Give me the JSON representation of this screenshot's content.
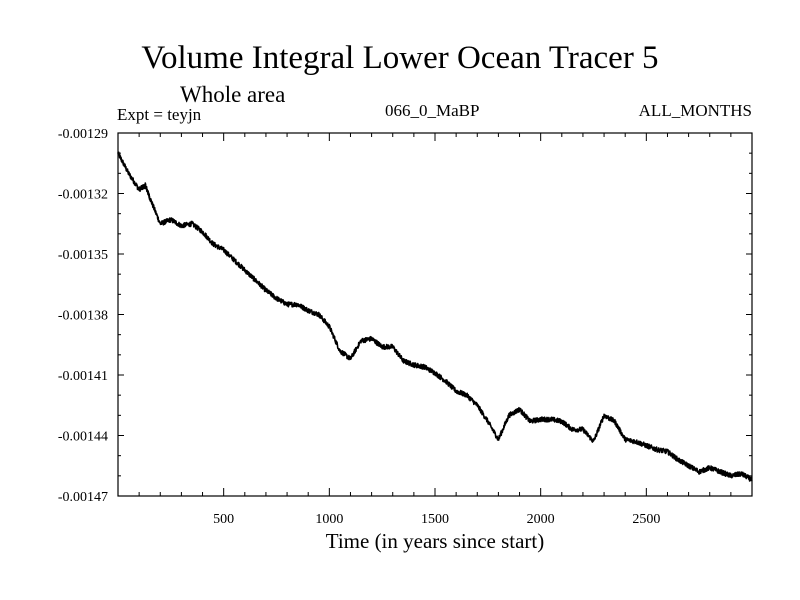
{
  "chart_data": {
    "type": "line",
    "title": "Volume Integral Lower Ocean Tracer 5",
    "subtitle": "Whole area",
    "annotations": {
      "left": "Expt = teyjn",
      "center": "066_0_MaBP",
      "right": "ALL_MONTHS"
    },
    "xlabel": "Time (in years since start)",
    "ylabel": "",
    "xlim": [
      0,
      3000
    ],
    "ylim": [
      -0.00147,
      -0.00129
    ],
    "xticks": [
      500,
      1000,
      1500,
      2000,
      2500
    ],
    "xtick_labels": [
      "500",
      "1000",
      "1500",
      "2000",
      "2500"
    ],
    "yticks": [
      -0.00129,
      -0.00132,
      -0.00135,
      -0.00138,
      -0.00141,
      -0.00144,
      -0.00147
    ],
    "ytick_labels": [
      "-0.00129",
      "-0.00132",
      "-0.00135",
      "-0.00138",
      "-0.00141",
      "-0.00144",
      "-0.00147"
    ],
    "series": [
      {
        "name": "Volume Integral Lower Ocean Tracer 5",
        "x": [
          0,
          50,
          100,
          130,
          150,
          200,
          250,
          300,
          350,
          400,
          450,
          500,
          550,
          600,
          650,
          700,
          750,
          800,
          850,
          900,
          950,
          1000,
          1050,
          1100,
          1150,
          1200,
          1250,
          1300,
          1350,
          1400,
          1450,
          1500,
          1550,
          1600,
          1650,
          1700,
          1750,
          1800,
          1850,
          1900,
          1950,
          2000,
          2050,
          2100,
          2150,
          2200,
          2250,
          2300,
          2350,
          2400,
          2450,
          2500,
          2550,
          2600,
          2650,
          2700,
          2750,
          2800,
          2850,
          2900,
          2950,
          3000
        ],
        "values": [
          -0.0013,
          -0.00131,
          -0.001318,
          -0.001316,
          -0.001322,
          -0.001335,
          -0.001333,
          -0.001336,
          -0.001335,
          -0.001339,
          -0.001345,
          -0.001348,
          -0.001353,
          -0.001358,
          -0.001363,
          -0.001368,
          -0.001372,
          -0.001375,
          -0.001375,
          -0.001378,
          -0.00138,
          -0.001386,
          -0.001398,
          -0.001402,
          -0.001393,
          -0.001392,
          -0.001396,
          -0.001396,
          -0.001403,
          -0.001405,
          -0.001406,
          -0.001409,
          -0.001413,
          -0.001418,
          -0.00142,
          -0.001425,
          -0.001433,
          -0.001442,
          -0.00143,
          -0.001427,
          -0.001433,
          -0.001432,
          -0.001432,
          -0.001433,
          -0.001437,
          -0.001437,
          -0.001443,
          -0.00143,
          -0.001433,
          -0.001442,
          -0.001443,
          -0.001445,
          -0.001447,
          -0.001448,
          -0.001452,
          -0.001455,
          -0.001458,
          -0.001456,
          -0.001458,
          -0.00146,
          -0.001459,
          -0.001462
        ]
      }
    ]
  }
}
